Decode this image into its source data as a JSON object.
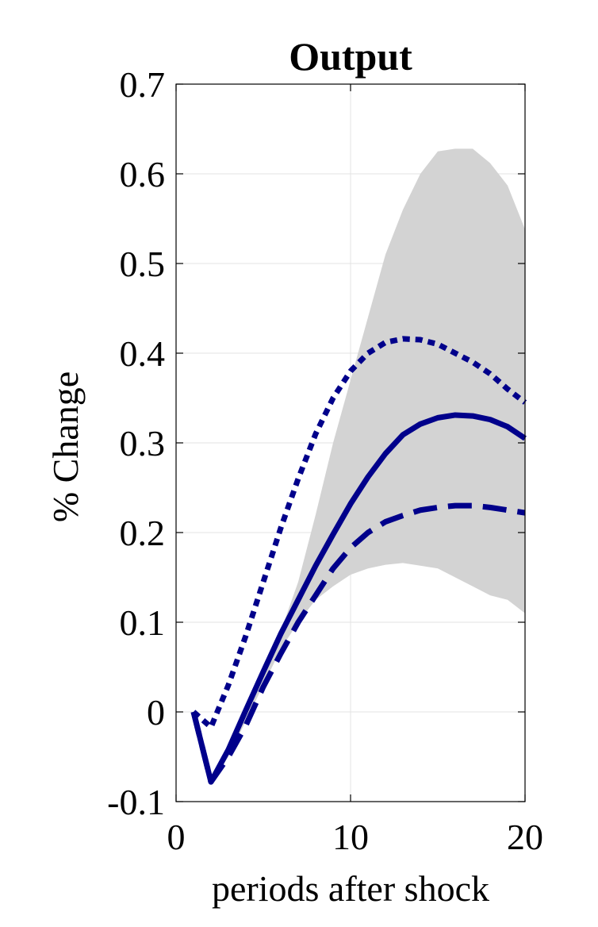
{
  "chart_data": {
    "type": "line",
    "title": "Output",
    "xlabel": "periods after shock",
    "ylabel": "% Change",
    "xlim": [
      0,
      20
    ],
    "ylim": [
      -0.1,
      0.7
    ],
    "xticks": [
      0,
      10,
      20
    ],
    "xtick_labels": [
      "0",
      "10",
      "20"
    ],
    "yticks": [
      -0.1,
      0,
      0.1,
      0.2,
      0.3,
      0.4,
      0.5,
      0.6,
      0.7
    ],
    "ytick_labels": [
      "-0.1",
      "0",
      "0.1",
      "0.2",
      "0.3",
      "0.4",
      "0.5",
      "0.6",
      "0.7"
    ],
    "grid": true,
    "x": [
      1,
      2,
      3,
      4,
      5,
      6,
      7,
      8,
      9,
      10,
      11,
      12,
      13,
      14,
      15,
      16,
      17,
      18,
      19,
      20
    ],
    "band": {
      "lower": [
        0.0,
        -0.08,
        -0.05,
        -0.01,
        0.03,
        0.07,
        0.1,
        0.125,
        0.14,
        0.153,
        0.16,
        0.164,
        0.166,
        0.163,
        0.16,
        0.15,
        0.14,
        0.13,
        0.125,
        0.11
      ],
      "upper": [
        0.0,
        -0.08,
        -0.04,
        0.0,
        0.04,
        0.09,
        0.145,
        0.22,
        0.3,
        0.37,
        0.44,
        0.51,
        0.56,
        0.6,
        0.625,
        0.628,
        0.628,
        0.612,
        0.587,
        0.538
      ],
      "color": "#d3d3d3"
    },
    "series": [
      {
        "style": "solid",
        "color": "#00008b",
        "values": [
          0.0,
          -0.078,
          -0.042,
          0.002,
          0.045,
          0.087,
          0.125,
          0.163,
          0.198,
          0.232,
          0.262,
          0.288,
          0.309,
          0.321,
          0.328,
          0.331,
          0.33,
          0.326,
          0.318,
          0.305
        ]
      },
      {
        "style": "dashed",
        "color": "#00008b",
        "values": [
          0.0,
          -0.078,
          -0.05,
          -0.015,
          0.028,
          0.065,
          0.1,
          0.13,
          0.16,
          0.183,
          0.2,
          0.212,
          0.219,
          0.225,
          0.228,
          0.23,
          0.23,
          0.228,
          0.225,
          0.222
        ]
      },
      {
        "style": "dotted",
        "color": "#00008b",
        "values": [
          0.0,
          -0.017,
          0.03,
          0.085,
          0.145,
          0.205,
          0.26,
          0.31,
          0.35,
          0.38,
          0.4,
          0.412,
          0.416,
          0.415,
          0.41,
          0.4,
          0.39,
          0.377,
          0.36,
          0.345
        ]
      }
    ]
  }
}
